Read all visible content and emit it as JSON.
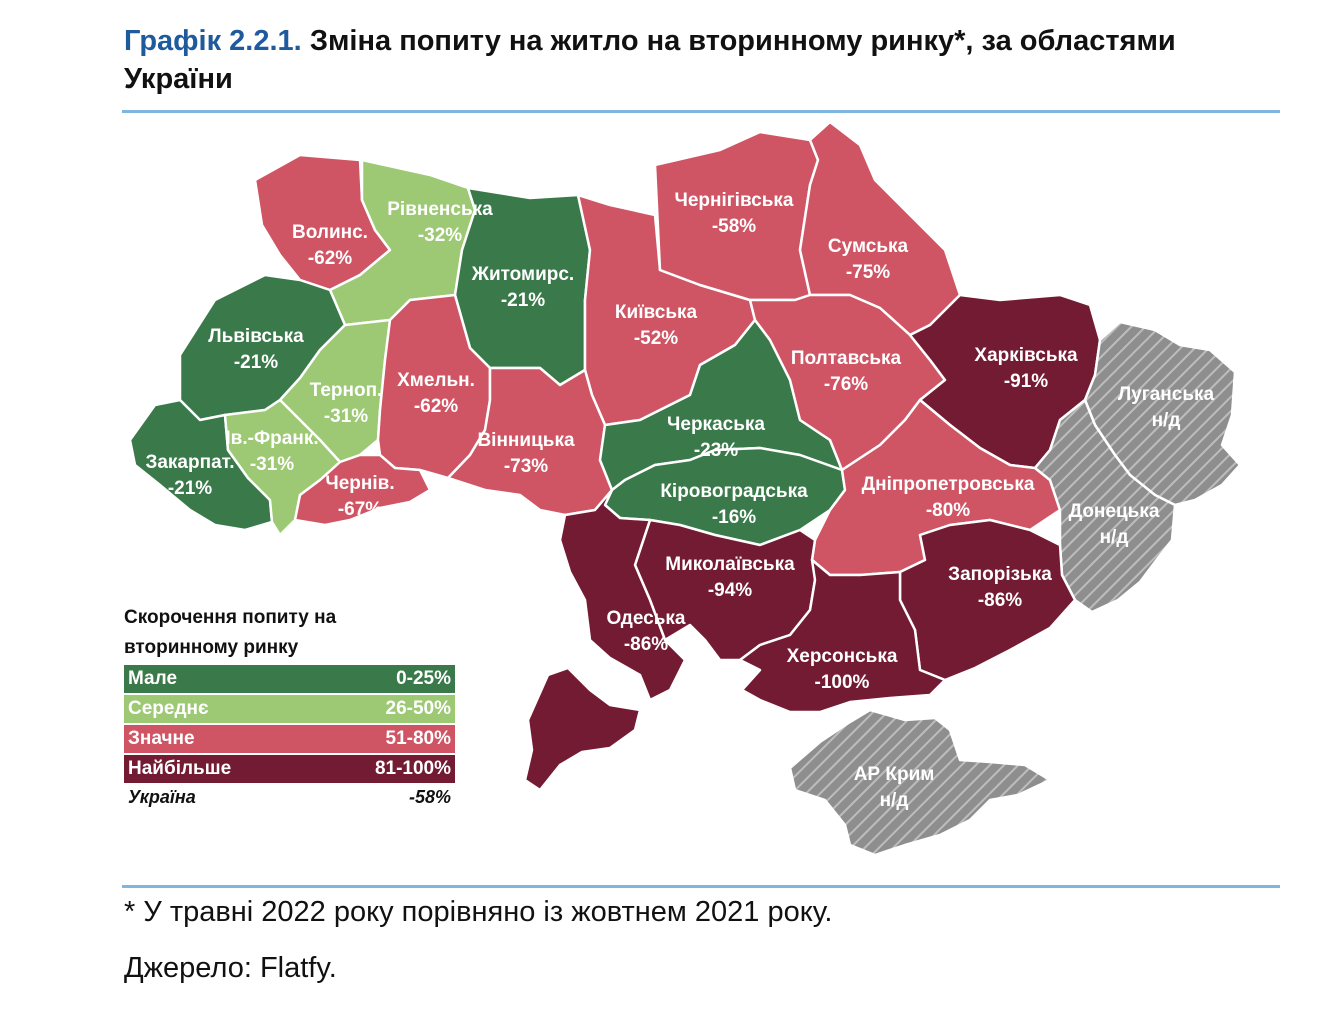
{
  "title": {
    "number": "Графік 2.2.1.",
    "text": "Зміна попиту на житло на вторинному ринку*, за областями України"
  },
  "colors": {
    "small": "#3a7a4a",
    "medium": "#9dc874",
    "significant": "#cf5565",
    "largest": "#741b34",
    "no_data": "#9a9a9a"
  },
  "regions": [
    {
      "id": "volyn",
      "name": "Волинс.",
      "value": "-62%",
      "category": "significant"
    },
    {
      "id": "rivne",
      "name": "Рівненська",
      "value": "-32%",
      "category": "medium"
    },
    {
      "id": "zhytomyr",
      "name": "Житомирс.",
      "value": "-21%",
      "category": "small"
    },
    {
      "id": "kyiv",
      "name": "Київська",
      "value": "-52%",
      "category": "significant"
    },
    {
      "id": "chernihiv",
      "name": "Чернігівська",
      "value": "-58%",
      "category": "significant"
    },
    {
      "id": "sumy",
      "name": "Сумська",
      "value": "-75%",
      "category": "significant"
    },
    {
      "id": "lviv",
      "name": "Львівська",
      "value": "-21%",
      "category": "small"
    },
    {
      "id": "ternopil",
      "name": "Терноп.",
      "value": "-31%",
      "category": "medium"
    },
    {
      "id": "khmelnytskyi",
      "name": "Хмельн.",
      "value": "-62%",
      "category": "significant"
    },
    {
      "id": "vinnytsia",
      "name": "Вінницька",
      "value": "-73%",
      "category": "significant"
    },
    {
      "id": "cherkasy",
      "name": "Черкаська",
      "value": "-23%",
      "category": "small"
    },
    {
      "id": "poltava",
      "name": "Полтавська",
      "value": "-76%",
      "category": "significant"
    },
    {
      "id": "kharkiv",
      "name": "Харківська",
      "value": "-91%",
      "category": "largest"
    },
    {
      "id": "luhansk",
      "name": "Луганська",
      "value": "н/д",
      "category": "no_data"
    },
    {
      "id": "zakarpattia",
      "name": "Закарпат.",
      "value": "-21%",
      "category": "small"
    },
    {
      "id": "ivano_frankivsk",
      "name": "Ів.-Франк.",
      "value": "-31%",
      "category": "medium"
    },
    {
      "id": "chernivtsi",
      "name": "Чернів.",
      "value": "-67%",
      "category": "significant"
    },
    {
      "id": "kirovohrad",
      "name": "Кіровоградська",
      "value": "-16%",
      "category": "small"
    },
    {
      "id": "dnipropetrovsk",
      "name": "Дніпропетровська",
      "value": "-80%",
      "category": "significant"
    },
    {
      "id": "donetsk",
      "name": "Донецька",
      "value": "н/д",
      "category": "no_data"
    },
    {
      "id": "mykolaiv",
      "name": "Миколаївська",
      "value": "-94%",
      "category": "largest"
    },
    {
      "id": "odesa",
      "name": "Одеська",
      "value": "-86%",
      "category": "largest"
    },
    {
      "id": "zaporizhzhia",
      "name": "Запорізька",
      "value": "-86%",
      "category": "largest"
    },
    {
      "id": "kherson",
      "name": "Херсонська",
      "value": "-100%",
      "category": "largest"
    },
    {
      "id": "crimea",
      "name": "АР Крим",
      "value": "н/д",
      "category": "no_data"
    }
  ],
  "legend": {
    "title": "Скорочення попиту на вторинному ринку",
    "items": [
      {
        "label": "Мале",
        "range": "0-25%",
        "category": "small"
      },
      {
        "label": "Середнє",
        "range": "26-50%",
        "category": "medium"
      },
      {
        "label": "Значне",
        "range": "51-80%",
        "category": "significant"
      },
      {
        "label": "Найбільше",
        "range": "81-100%",
        "category": "largest"
      }
    ],
    "total": {
      "label": "Україна",
      "value": "-58%"
    }
  },
  "footnotes": {
    "note": "* У травні 2022 року порівняно із жовтнем 2021 року.",
    "source": "Джерело: Flatfy."
  }
}
